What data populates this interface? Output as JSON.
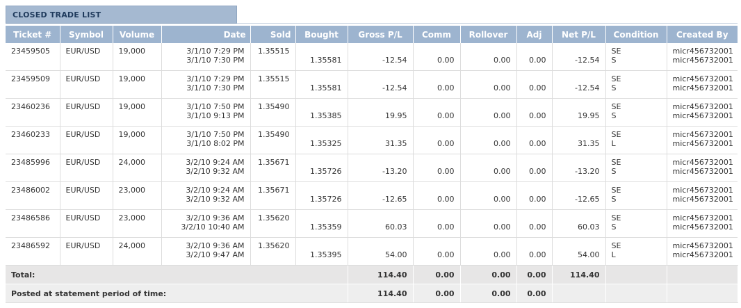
{
  "title": "CLOSED TRADE LIST",
  "columns": [
    "Ticket #",
    "Symbol",
    "Volume",
    "Date",
    "Sold",
    "Bought",
    "Gross P/L",
    "Comm",
    "Rollover",
    "Adj",
    "Net P/L",
    "Condition",
    "Created By"
  ],
  "rows": [
    {
      "ticket": "23459505",
      "symbol": "EUR/USD",
      "volume": "19,000",
      "date1": "3/1/10 7:29 PM",
      "date2": "3/1/10 7:30 PM",
      "sold": "1.35515",
      "bought": "1.35581",
      "gross": "-12.54",
      "comm": "0.00",
      "rollover": "0.00",
      "adj": "0.00",
      "net": "-12.54",
      "cond1": "SE",
      "cond2": "S",
      "by1": "micr456732001",
      "by2": "micr456732001"
    },
    {
      "ticket": "23459509",
      "symbol": "EUR/USD",
      "volume": "19,000",
      "date1": "3/1/10 7:29 PM",
      "date2": "3/1/10 7:30 PM",
      "sold": "1.35515",
      "bought": "1.35581",
      "gross": "-12.54",
      "comm": "0.00",
      "rollover": "0.00",
      "adj": "0.00",
      "net": "-12.54",
      "cond1": "SE",
      "cond2": "S",
      "by1": "micr456732001",
      "by2": "micr456732001"
    },
    {
      "ticket": "23460236",
      "symbol": "EUR/USD",
      "volume": "19,000",
      "date1": "3/1/10 7:50 PM",
      "date2": "3/1/10 9:13 PM",
      "sold": "1.35490",
      "bought": "1.35385",
      "gross": "19.95",
      "comm": "0.00",
      "rollover": "0.00",
      "adj": "0.00",
      "net": "19.95",
      "cond1": "SE",
      "cond2": "S",
      "by1": "micr456732001",
      "by2": "micr456732001"
    },
    {
      "ticket": "23460233",
      "symbol": "EUR/USD",
      "volume": "19,000",
      "date1": "3/1/10 7:50 PM",
      "date2": "3/1/10 8:02 PM",
      "sold": "1.35490",
      "bought": "1.35325",
      "gross": "31.35",
      "comm": "0.00",
      "rollover": "0.00",
      "adj": "0.00",
      "net": "31.35",
      "cond1": "SE",
      "cond2": "L",
      "by1": "micr456732001",
      "by2": "micr456732001"
    },
    {
      "ticket": "23485996",
      "symbol": "EUR/USD",
      "volume": "24,000",
      "date1": "3/2/10 9:24 AM",
      "date2": "3/2/10 9:32 AM",
      "sold": "1.35671",
      "bought": "1.35726",
      "gross": "-13.20",
      "comm": "0.00",
      "rollover": "0.00",
      "adj": "0.00",
      "net": "-13.20",
      "cond1": "SE",
      "cond2": "S",
      "by1": "micr456732001",
      "by2": "micr456732001"
    },
    {
      "ticket": "23486002",
      "symbol": "EUR/USD",
      "volume": "23,000",
      "date1": "3/2/10 9:24 AM",
      "date2": "3/2/10 9:32 AM",
      "sold": "1.35671",
      "bought": "1.35726",
      "gross": "-12.65",
      "comm": "0.00",
      "rollover": "0.00",
      "adj": "0.00",
      "net": "-12.65",
      "cond1": "SE",
      "cond2": "S",
      "by1": "micr456732001",
      "by2": "micr456732001"
    },
    {
      "ticket": "23486586",
      "symbol": "EUR/USD",
      "volume": "23,000",
      "date1": "3/2/10 9:36 AM",
      "date2": "3/2/10 10:40 AM",
      "sold": "1.35620",
      "bought": "1.35359",
      "gross": "60.03",
      "comm": "0.00",
      "rollover": "0.00",
      "adj": "0.00",
      "net": "60.03",
      "cond1": "SE",
      "cond2": "S",
      "by1": "micr456732001",
      "by2": "micr456732001"
    },
    {
      "ticket": "23486592",
      "symbol": "EUR/USD",
      "volume": "24,000",
      "date1": "3/2/10 9:36 AM",
      "date2": "3/2/10 9:47 AM",
      "sold": "1.35620",
      "bought": "1.35395",
      "gross": "54.00",
      "comm": "0.00",
      "rollover": "0.00",
      "adj": "0.00",
      "net": "54.00",
      "cond1": "SE",
      "cond2": "L",
      "by1": "micr456732001",
      "by2": "micr456732001"
    }
  ],
  "total": {
    "label": "Total:",
    "gross": "114.40",
    "comm": "0.00",
    "rollover": "0.00",
    "adj": "0.00",
    "net": "114.40"
  },
  "posted": {
    "label": "Posted at statement period of time:",
    "gross": "114.40",
    "comm": "0.00",
    "rollover": "0.00",
    "adj": "0.00"
  }
}
